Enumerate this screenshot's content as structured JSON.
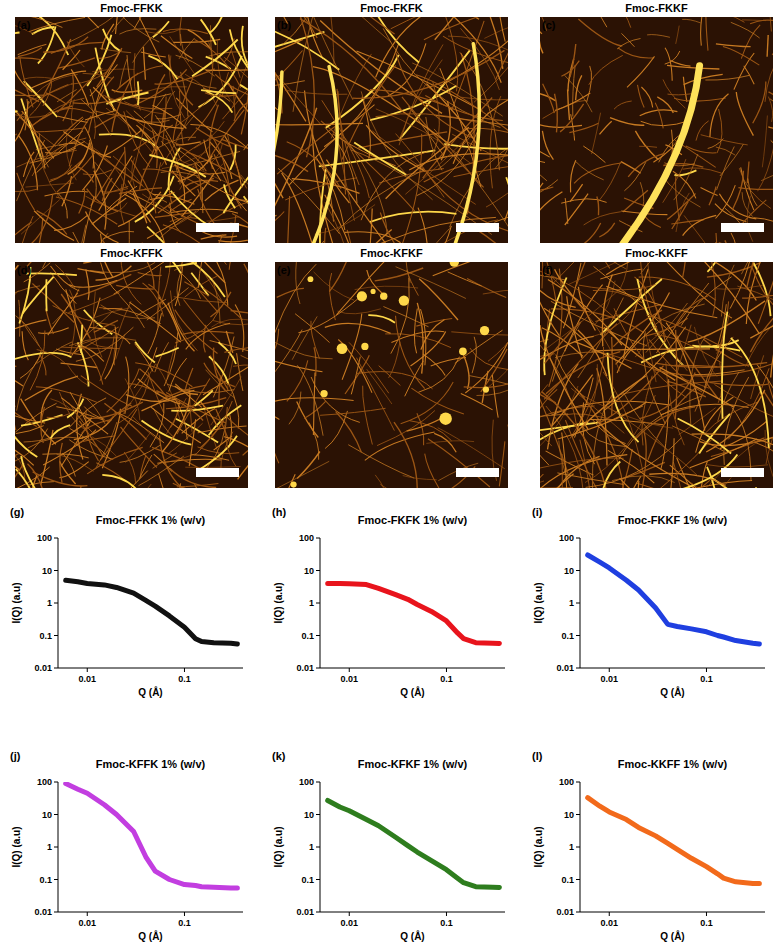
{
  "images": [
    {
      "panel_label": "(a)",
      "title": "Fmoc-FFKK"
    },
    {
      "panel_label": "(b)",
      "title": "Fmoc-FKFK"
    },
    {
      "panel_label": "(c)",
      "title": "Fmoc-FKKF"
    },
    {
      "panel_label": "(d)",
      "title": "Fmoc-KFFK"
    },
    {
      "panel_label": "(e)",
      "title": "Fmoc-KFKF"
    },
    {
      "panel_label": "(f)",
      "title": "Fmoc-KKFF"
    }
  ],
  "chart_data": [
    {
      "type": "line",
      "panel_label": "(g)",
      "title": "Fmoc-FFKK 1% (w/v)",
      "x_label": "Q (Å)",
      "y_label": "I(Q) (a.u)",
      "log": true,
      "grid": false,
      "line_style": "solid",
      "color": "#111111",
      "xlim": [
        0.005,
        0.4
      ],
      "ylim": [
        0.01,
        100
      ],
      "xticks": [
        0.01,
        0.1
      ],
      "yticks": [
        0.01,
        0.1,
        1,
        10,
        100
      ],
      "x": [
        0.006,
        0.008,
        0.01,
        0.015,
        0.02,
        0.03,
        0.04,
        0.05,
        0.07,
        0.1,
        0.13,
        0.15,
        0.2,
        0.3,
        0.35
      ],
      "values": [
        5,
        4.5,
        4,
        3.6,
        3,
        2,
        1.2,
        0.8,
        0.4,
        0.18,
        0.08,
        0.065,
        0.06,
        0.058,
        0.055
      ]
    },
    {
      "type": "line",
      "panel_label": "(h)",
      "title": "Fmoc-FKFK 1% (w/v)",
      "x_label": "Q (Å)",
      "y_label": "I(Q) (a.u)",
      "log": true,
      "grid": false,
      "line_style": "solid",
      "color": "#e8141c",
      "xlim": [
        0.005,
        0.4
      ],
      "ylim": [
        0.01,
        100
      ],
      "xticks": [
        0.01,
        0.1
      ],
      "yticks": [
        0.01,
        0.1,
        1,
        10,
        100
      ],
      "x": [
        0.006,
        0.008,
        0.01,
        0.015,
        0.02,
        0.03,
        0.04,
        0.05,
        0.07,
        0.1,
        0.13,
        0.15,
        0.2,
        0.3,
        0.35
      ],
      "values": [
        4,
        4,
        3.9,
        3.7,
        2.8,
        1.8,
        1.3,
        0.9,
        0.55,
        0.28,
        0.12,
        0.08,
        0.06,
        0.058,
        0.057
      ]
    },
    {
      "type": "line",
      "panel_label": "(i)",
      "title": "Fmoc-FKKF 1% (w/v)",
      "x_label": "Q (Å)",
      "y_label": "I(Q) (a.u)",
      "log": true,
      "grid": false,
      "line_style": "solid",
      "color": "#1f3fe0",
      "xlim": [
        0.005,
        0.4
      ],
      "ylim": [
        0.01,
        100
      ],
      "xticks": [
        0.01,
        0.1
      ],
      "yticks": [
        0.01,
        0.1,
        1,
        10,
        100
      ],
      "x": [
        0.006,
        0.008,
        0.01,
        0.015,
        0.02,
        0.03,
        0.04,
        0.05,
        0.07,
        0.1,
        0.13,
        0.15,
        0.2,
        0.3,
        0.35
      ],
      "values": [
        30,
        18,
        12,
        5,
        2.5,
        0.7,
        0.22,
        0.19,
        0.16,
        0.13,
        0.1,
        0.09,
        0.07,
        0.058,
        0.055
      ]
    },
    {
      "type": "line",
      "panel_label": "(j)",
      "title": "Fmoc-KFFK 1% (w/v)",
      "x_label": "Q (Å)",
      "y_label": "I(Q) (a.u)",
      "log": true,
      "grid": false,
      "line_style": "solid",
      "color": "#c23ee0",
      "xlim": [
        0.005,
        0.4
      ],
      "ylim": [
        0.01,
        100
      ],
      "xticks": [
        0.01,
        0.1
      ],
      "yticks": [
        0.01,
        0.1,
        1,
        10,
        100
      ],
      "x": [
        0.006,
        0.008,
        0.01,
        0.015,
        0.02,
        0.03,
        0.04,
        0.05,
        0.07,
        0.1,
        0.13,
        0.15,
        0.2,
        0.3,
        0.35
      ],
      "values": [
        90,
        60,
        45,
        20,
        10,
        3,
        0.5,
        0.18,
        0.1,
        0.07,
        0.065,
        0.06,
        0.058,
        0.055,
        0.055
      ]
    },
    {
      "type": "line",
      "panel_label": "(k)",
      "title": "Fmoc-KFKF 1% (w/v)",
      "x_label": "Q (Å)",
      "y_label": "I(Q) (a.u)",
      "log": true,
      "grid": false,
      "line_style": "solid",
      "color": "#2e7d1e",
      "xlim": [
        0.005,
        0.4
      ],
      "ylim": [
        0.01,
        100
      ],
      "xticks": [
        0.01,
        0.1
      ],
      "yticks": [
        0.01,
        0.1,
        1,
        10,
        100
      ],
      "x": [
        0.006,
        0.008,
        0.01,
        0.015,
        0.02,
        0.03,
        0.04,
        0.05,
        0.07,
        0.1,
        0.13,
        0.15,
        0.2,
        0.3,
        0.35
      ],
      "values": [
        27,
        17,
        13,
        7,
        4.5,
        2,
        1.1,
        0.7,
        0.38,
        0.2,
        0.11,
        0.08,
        0.06,
        0.058,
        0.057
      ]
    },
    {
      "type": "line",
      "panel_label": "(l)",
      "title": "Fmoc-KKFF 1% (w/v)",
      "x_label": "Q (Å)",
      "y_label": "I(Q) (a.u)",
      "log": true,
      "grid": false,
      "line_style": "solid",
      "color": "#f26a1b",
      "xlim": [
        0.005,
        0.4
      ],
      "ylim": [
        0.01,
        100
      ],
      "xticks": [
        0.01,
        0.1
      ],
      "yticks": [
        0.01,
        0.1,
        1,
        10,
        100
      ],
      "x": [
        0.006,
        0.008,
        0.01,
        0.015,
        0.02,
        0.03,
        0.04,
        0.05,
        0.07,
        0.1,
        0.13,
        0.15,
        0.2,
        0.3,
        0.35
      ],
      "values": [
        33,
        18,
        12,
        7,
        4,
        2.2,
        1.3,
        0.85,
        0.45,
        0.25,
        0.15,
        0.11,
        0.085,
        0.075,
        0.075
      ]
    }
  ]
}
